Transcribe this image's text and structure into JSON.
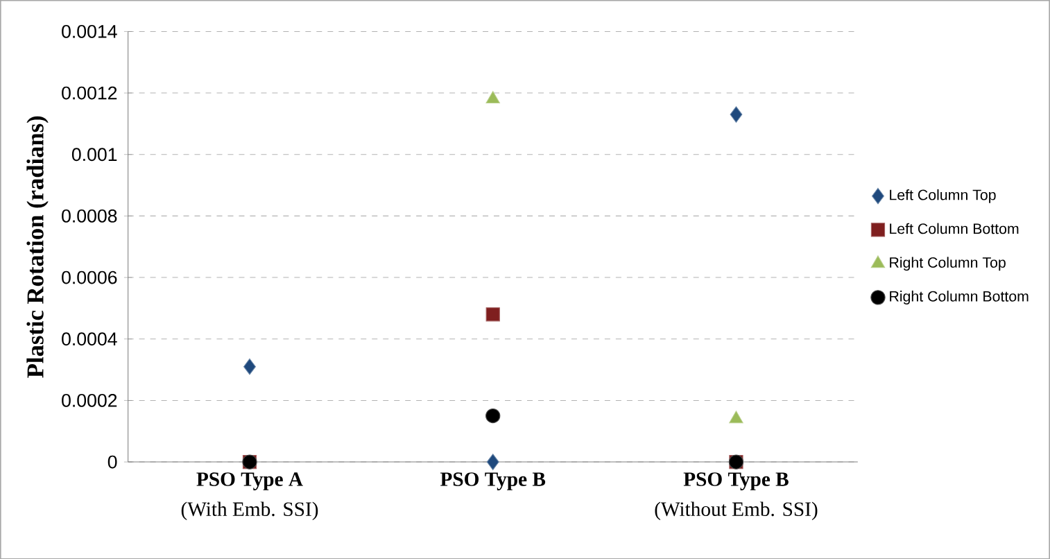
{
  "chart_data": {
    "type": "scatter",
    "ylabel": "Plastic Rotation (radians)",
    "categories": [
      "PSO Type A",
      "PSO Type B",
      "PSO Type B"
    ],
    "annotations": [
      "(With Emb. SSI)",
      "(Without Emb. SSI)"
    ],
    "ylim": [
      0,
      0.0014
    ],
    "yticks": [
      0,
      0.0002,
      0.0004,
      0.0006,
      0.0008,
      0.001,
      0.0012,
      0.0014
    ],
    "grid": "y",
    "legend": "right",
    "series": [
      {
        "name": "Left Column Top",
        "color": "#1f497d",
        "marker": "diamond",
        "values": [
          0.00031,
          0,
          0.00113
        ]
      },
      {
        "name": "Left Column Bottom",
        "color": "#7f1f1f",
        "marker": "square",
        "values": [
          0,
          0.00048,
          0
        ]
      },
      {
        "name": "Right Column Top",
        "color": "#9bbb59",
        "marker": "triangle",
        "values": [
          null,
          0.00118,
          0.00014
        ]
      },
      {
        "name": "Right Column Bottom",
        "color": "#000000",
        "marker": "circle",
        "values": [
          0,
          0.00015,
          0
        ]
      }
    ]
  }
}
